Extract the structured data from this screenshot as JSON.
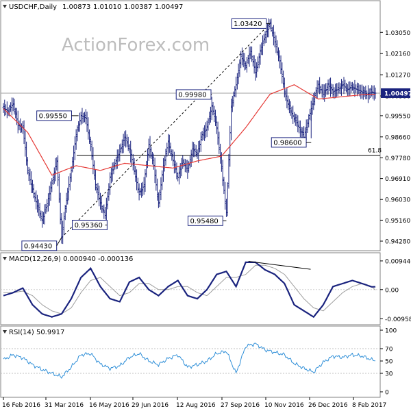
{
  "header": {
    "symbol": "USDCHF,Daily",
    "open": "1.00873",
    "high": "1.01010",
    "low": "1.00387",
    "close": "1.00497"
  },
  "watermark": "ActionForex.com",
  "colors": {
    "price": "#1a237e",
    "ma": "#e53935",
    "macd": "#1a237e",
    "signal": "#9e9e9e",
    "rsi": "#2f8fd8",
    "grid": "#d0d0d0",
    "watermark": "#bdbdbd"
  },
  "chart_data": [
    {
      "type": "line",
      "title": "",
      "x_labels": [
        "16 Feb 2016",
        "31 Mar 2016",
        "16 May 2016",
        "29 Jun 2016",
        "12 Aug 2016",
        "27 Sep 2016",
        "10 Nov 2016",
        "26 Dec 2016",
        "8 Feb 2017"
      ],
      "y_ticks": [
        "1.03050",
        "1.02160",
        "1.01270",
        "1.00380",
        "0.99550",
        "0.98660",
        "0.97780",
        "0.96910",
        "0.96030",
        "0.95160",
        "0.94280"
      ],
      "ylim": [
        0.9405,
        1.0395
      ],
      "last_price_label": "1.00497",
      "last_price": 1.00497,
      "series": [
        {
          "x": [
            0,
            4,
            8,
            12,
            16,
            20,
            24,
            28,
            32,
            36,
            40,
            44,
            48,
            52,
            56,
            60,
            64,
            68,
            72,
            76,
            80,
            84,
            88,
            92,
            96,
            100,
            104,
            108,
            112,
            116,
            120,
            124,
            128,
            132,
            136,
            140,
            144,
            148,
            152,
            156,
            160,
            164,
            168,
            172,
            176,
            180,
            184,
            188,
            192,
            196,
            200,
            204,
            208,
            212,
            216,
            220,
            224,
            228,
            232,
            236,
            240,
            244,
            248,
            252,
            256,
            260,
            264,
            268,
            272,
            276,
            280,
            284,
            288,
            292,
            296,
            300,
            304,
            307
          ],
          "values": [
            0.9985,
            0.9975,
            1.0005,
            0.9915,
            0.9905,
            0.9725,
            0.9645,
            0.9575,
            0.9515,
            0.9585,
            0.9672,
            0.9765,
            0.9445,
            0.9605,
            0.9725,
            0.9875,
            0.9955,
            0.9945,
            0.9825,
            0.9665,
            0.9585,
            0.9536,
            0.9695,
            0.9755,
            0.9805,
            0.9865,
            0.9815,
            0.9725,
            0.9625,
            0.9665,
            0.9835,
            0.9745,
            0.9585,
            0.9745,
            0.9845,
            0.9765,
            0.9695,
            0.9765,
            0.9725,
            0.9815,
            0.9795,
            0.9875,
            0.9905,
            0.9998,
            0.9905,
            0.9735,
            0.9548,
            0.9995,
            1.0085,
            1.0205,
            1.0165,
            1.0225,
            1.0135,
            1.0225,
            1.0295,
            1.0342,
            1.0265,
            1.0185,
            1.0055,
            0.9985,
            0.9945,
            0.9905,
            0.9865,
            0.9945,
            1.0025,
            1.0085,
            1.0045,
            1.0085,
            1.0055,
            1.0065,
            1.0085,
            1.0065,
            1.0075,
            1.0065,
            1.0055,
            1.0045,
            1.0055,
            1.00497
          ]
        },
        {
          "x": [
            0,
            20,
            40,
            60,
            80,
            100,
            120,
            140,
            160,
            180,
            200,
            220,
            240,
            260,
            280,
            300,
            307
          ],
          "values": [
            0.9985,
            0.9885,
            0.9705,
            0.9745,
            0.9725,
            0.9755,
            0.9745,
            0.9735,
            0.9765,
            0.9785,
            0.9905,
            1.0045,
            1.0085,
            1.0025,
            1.0035,
            1.0045,
            1.0045
          ]
        }
      ],
      "levels": [
        {
          "label": "61.8",
          "value": 0.9789
        },
        {
          "label": "0.99550",
          "value": 0.9955,
          "index": 62
        },
        {
          "label": "0.94430",
          "value": 0.9443,
          "index": 48
        },
        {
          "label": "0.95360",
          "value": 0.9536,
          "index": 84
        },
        {
          "label": "0.99980",
          "value": 0.9998,
          "index": 172
        },
        {
          "label": "0.95480",
          "value": 0.9548,
          "index": 184
        },
        {
          "label": "1.03420",
          "value": 1.0342,
          "index": 220
        },
        {
          "label": "0.98600",
          "value": 0.986,
          "index": 254
        }
      ],
      "trendline_from_index": 48,
      "trendline_to_index": 220
    },
    {
      "type": "line",
      "title": "MACD(12,26,9) 0.000940 -0.000136",
      "y_ticks": [
        "0.009446",
        "0.00",
        "-0.009588"
      ],
      "ylim": [
        -0.0102,
        0.0101
      ],
      "series": [
        {
          "x": [
            0,
            8,
            16,
            24,
            32,
            40,
            48,
            56,
            64,
            72,
            80,
            88,
            96,
            104,
            112,
            120,
            128,
            136,
            144,
            152,
            160,
            168,
            176,
            184,
            192,
            200,
            208,
            216,
            224,
            232,
            240,
            248,
            256,
            264,
            272,
            280,
            288,
            296,
            304,
            307
          ],
          "values": [
            -0.002,
            -0.001,
            0.0005,
            -0.005,
            -0.008,
            -0.009,
            -0.008,
            -0.003,
            0.004,
            0.007,
            0.001,
            -0.003,
            -0.004,
            0.0025,
            0.004,
            0.0,
            -0.002,
            0.001,
            0.003,
            -0.002,
            -0.003,
            0.0,
            0.005,
            0.006,
            0.001,
            0.009,
            0.009,
            0.0065,
            0.005,
            0.002,
            -0.005,
            -0.007,
            -0.009,
            -0.005,
            0.001,
            0.002,
            0.003,
            0.002,
            0.0009,
            0.00094
          ]
        },
        {
          "x": [
            0,
            8,
            16,
            24,
            32,
            40,
            48,
            56,
            64,
            72,
            80,
            88,
            96,
            104,
            112,
            120,
            128,
            136,
            144,
            152,
            160,
            168,
            176,
            184,
            192,
            200,
            208,
            216,
            224,
            232,
            240,
            248,
            256,
            264,
            272,
            280,
            288,
            296,
            304,
            307
          ],
          "values": [
            -0.001,
            -0.001,
            -0.0005,
            -0.002,
            -0.005,
            -0.007,
            -0.008,
            -0.006,
            -0.001,
            0.003,
            0.004,
            0.001,
            -0.002,
            -0.001,
            0.002,
            0.002,
            0.0,
            0.0,
            0.001,
            0.001,
            -0.001,
            -0.002,
            0.001,
            0.004,
            0.004,
            0.005,
            0.008,
            0.008,
            0.007,
            0.005,
            0.001,
            -0.003,
            -0.006,
            -0.007,
            -0.004,
            -0.001,
            0.001,
            0.002,
            0.001,
            -0.000136
          ]
        }
      ],
      "divergence_line_from_index": 200,
      "divergence_line_to_index": 240
    },
    {
      "type": "line",
      "title": "RSI(14) 50.9917",
      "y_ticks": [
        "100",
        "70",
        "50",
        "30",
        "0"
      ],
      "ylim": [
        0,
        100
      ],
      "series": [
        {
          "x": [
            0,
            8,
            16,
            24,
            32,
            40,
            48,
            56,
            64,
            72,
            80,
            88,
            96,
            104,
            112,
            120,
            128,
            136,
            144,
            152,
            160,
            168,
            176,
            184,
            192,
            200,
            208,
            216,
            224,
            232,
            240,
            248,
            256,
            264,
            272,
            280,
            288,
            296,
            304,
            307
          ],
          "values": [
            52,
            60,
            55,
            44,
            36,
            30,
            24,
            40,
            60,
            62,
            45,
            38,
            42,
            56,
            62,
            50,
            44,
            54,
            60,
            40,
            44,
            50,
            62,
            66,
            30,
            74,
            78,
            68,
            64,
            60,
            46,
            38,
            32,
            48,
            58,
            56,
            60,
            58,
            52,
            50.9917
          ]
        }
      ]
    }
  ]
}
